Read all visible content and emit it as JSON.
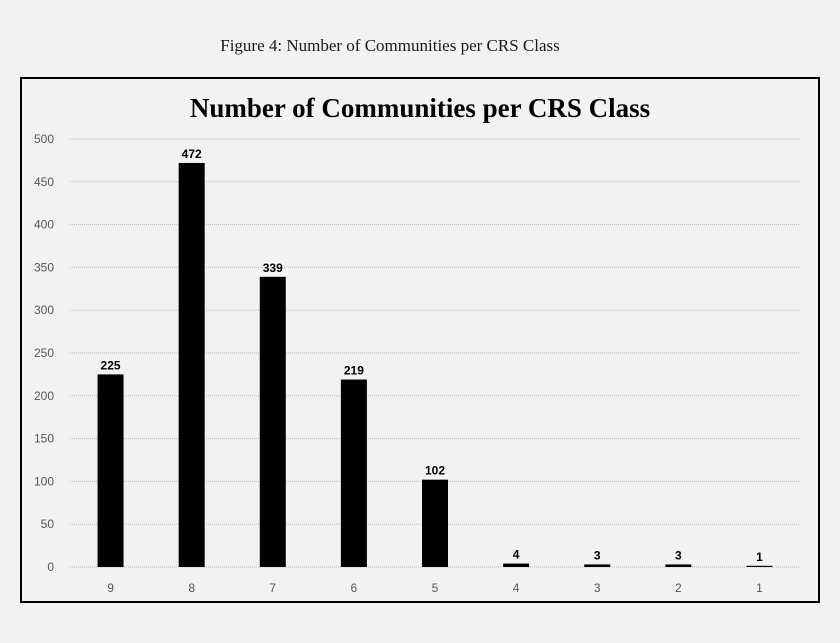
{
  "figure_caption": "Figure 4: Number of Communities per CRS Class",
  "chart_data": {
    "type": "bar",
    "title": "Number of Communities per CRS Class",
    "xlabel": "",
    "ylabel": "",
    "categories": [
      "9",
      "8",
      "7",
      "6",
      "5",
      "4",
      "3",
      "2",
      "1"
    ],
    "values": [
      225,
      472,
      339,
      219,
      102,
      4,
      3,
      3,
      1
    ],
    "data_labels": [
      "225",
      "472",
      "339",
      "219",
      "102",
      "4",
      "3",
      "3",
      "1"
    ],
    "ylim": [
      0,
      500
    ],
    "yticks": [
      "0",
      "50",
      "100",
      "150",
      "200",
      "250",
      "300",
      "350",
      "400",
      "450",
      "500"
    ],
    "grid": true,
    "legend": "none",
    "bar_color": "#000000"
  }
}
